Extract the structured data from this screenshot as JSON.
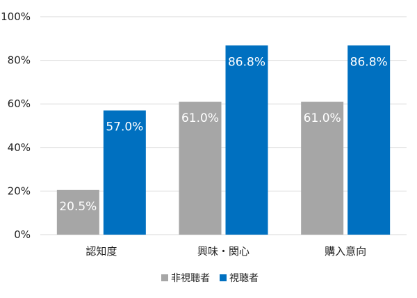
{
  "chart_data": {
    "type": "bar",
    "categories": [
      "認知度",
      "興味・関心",
      "購入意向"
    ],
    "series": [
      {
        "name": "非視聴者",
        "values": [
          20.5,
          61.0,
          61.0
        ],
        "labels": [
          "20.5%",
          "61.0%",
          "61.0%"
        ],
        "color": "#a6a6a6"
      },
      {
        "name": "視聴者",
        "values": [
          57.0,
          86.8,
          86.8
        ],
        "labels": [
          "57.0%",
          "86.8%",
          "86.8%"
        ],
        "color": "#0070c0"
      }
    ],
    "title": "",
    "xlabel": "",
    "ylabel": "",
    "ylim": [
      0,
      100
    ],
    "yticks": [
      0,
      20,
      40,
      60,
      80,
      100
    ],
    "ytick_labels": [
      "0%",
      "20%",
      "40%",
      "60%",
      "80%",
      "100%"
    ],
    "grid": true,
    "legend_position": "bottom"
  }
}
